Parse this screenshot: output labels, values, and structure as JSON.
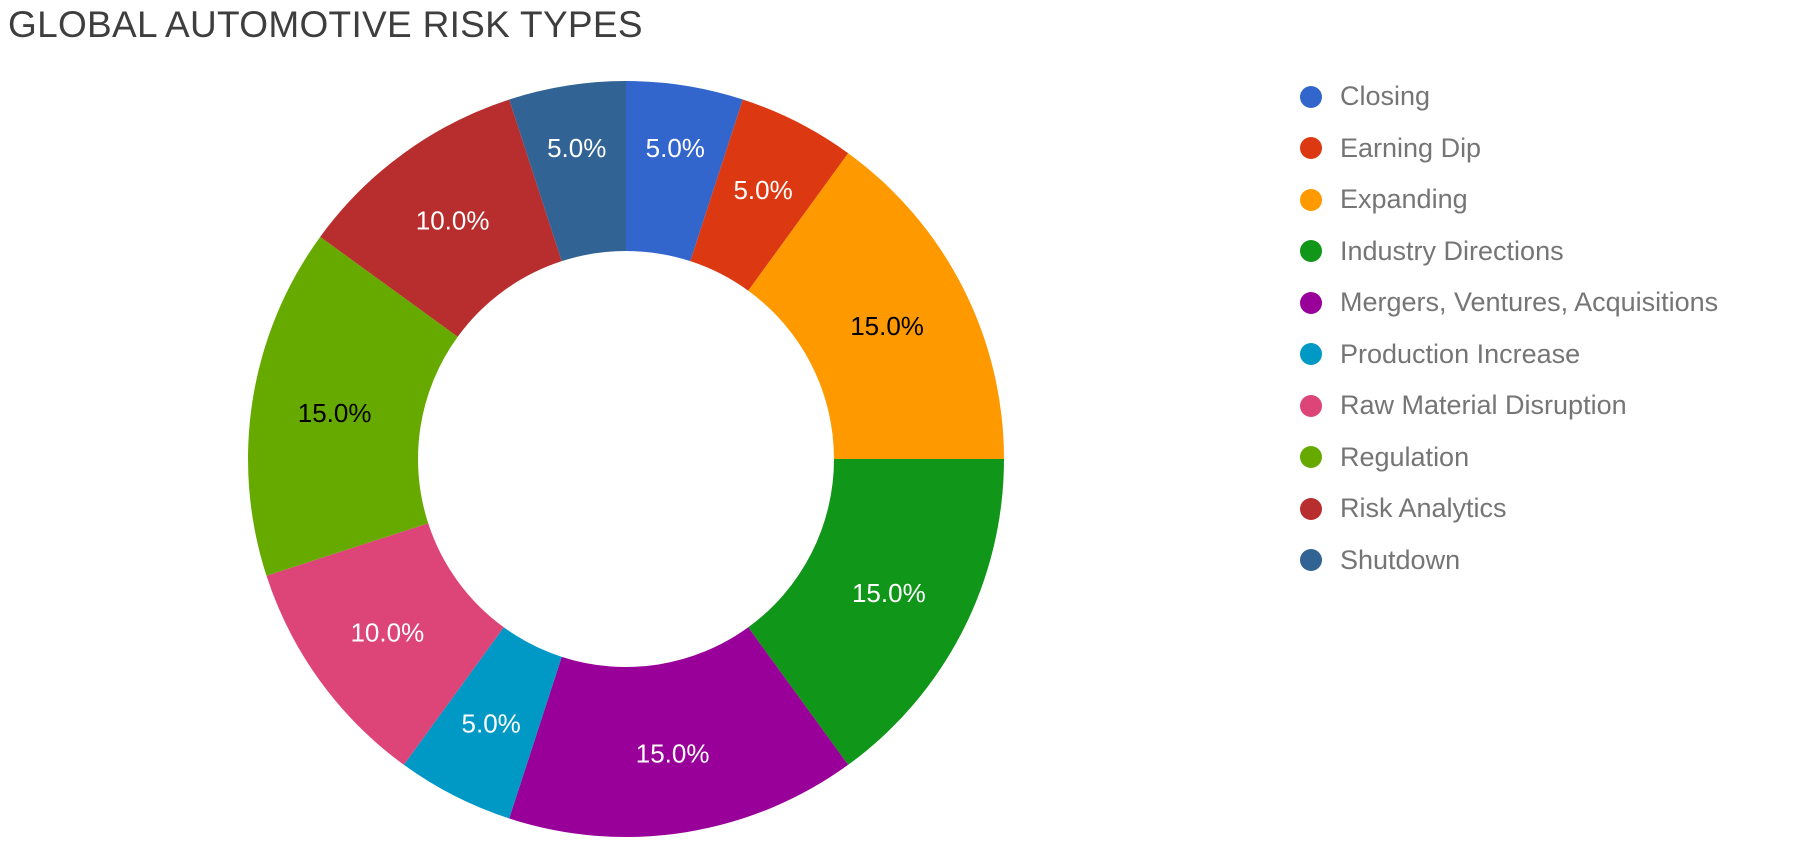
{
  "title": "GLOBAL AUTOMOTIVE RISK TYPES",
  "title_color": "#3e3e3e",
  "background": "#ffffff",
  "chart_data": {
    "type": "pie",
    "donut": true,
    "title": "GLOBAL AUTOMOTIVE RISK TYPES",
    "legend_position": "right",
    "direction": "clockwise",
    "start_angle_deg": 0,
    "unit": "%",
    "categories": [
      "Closing",
      "Earning Dip",
      "Expanding",
      "Industry Directions",
      "Mergers, Ventures, Acquisitions",
      "Production Increase",
      "Raw Material Disruption",
      "Regulation",
      "Risk Analytics",
      "Shutdown"
    ],
    "values": [
      5,
      5,
      15,
      15,
      15,
      5,
      10,
      15,
      10,
      5
    ],
    "slice_labels": [
      "5.0%",
      "5.0%",
      "15.0%",
      "15.0%",
      "15.0%",
      "5.0%",
      "10.0%",
      "15.0%",
      "10.0%",
      "5.0%"
    ],
    "colors": [
      "#3366CC",
      "#DC3912",
      "#FF9900",
      "#109618",
      "#990099",
      "#0099C6",
      "#DD4477",
      "#66AA00",
      "#B82E2E",
      "#316395"
    ],
    "label_text_colors": [
      "#ffffff",
      "#ffffff",
      "#000000",
      "#ffffff",
      "#ffffff",
      "#ffffff",
      "#ffffff",
      "#000000",
      "#ffffff",
      "#ffffff"
    ]
  },
  "legend": {
    "text_color": "#757575",
    "items": [
      {
        "label": "Closing",
        "color": "#3366CC"
      },
      {
        "label": "Earning Dip",
        "color": "#DC3912"
      },
      {
        "label": "Expanding",
        "color": "#FF9900"
      },
      {
        "label": "Industry Directions",
        "color": "#109618"
      },
      {
        "label": "Mergers, Ventures, Acquisitions",
        "color": "#990099"
      },
      {
        "label": "Production Increase",
        "color": "#0099C6"
      },
      {
        "label": "Raw Material Disruption",
        "color": "#DD4477"
      },
      {
        "label": "Regulation",
        "color": "#66AA00"
      },
      {
        "label": "Risk Analytics",
        "color": "#B82E2E"
      },
      {
        "label": "Shutdown",
        "color": "#316395"
      }
    ]
  }
}
